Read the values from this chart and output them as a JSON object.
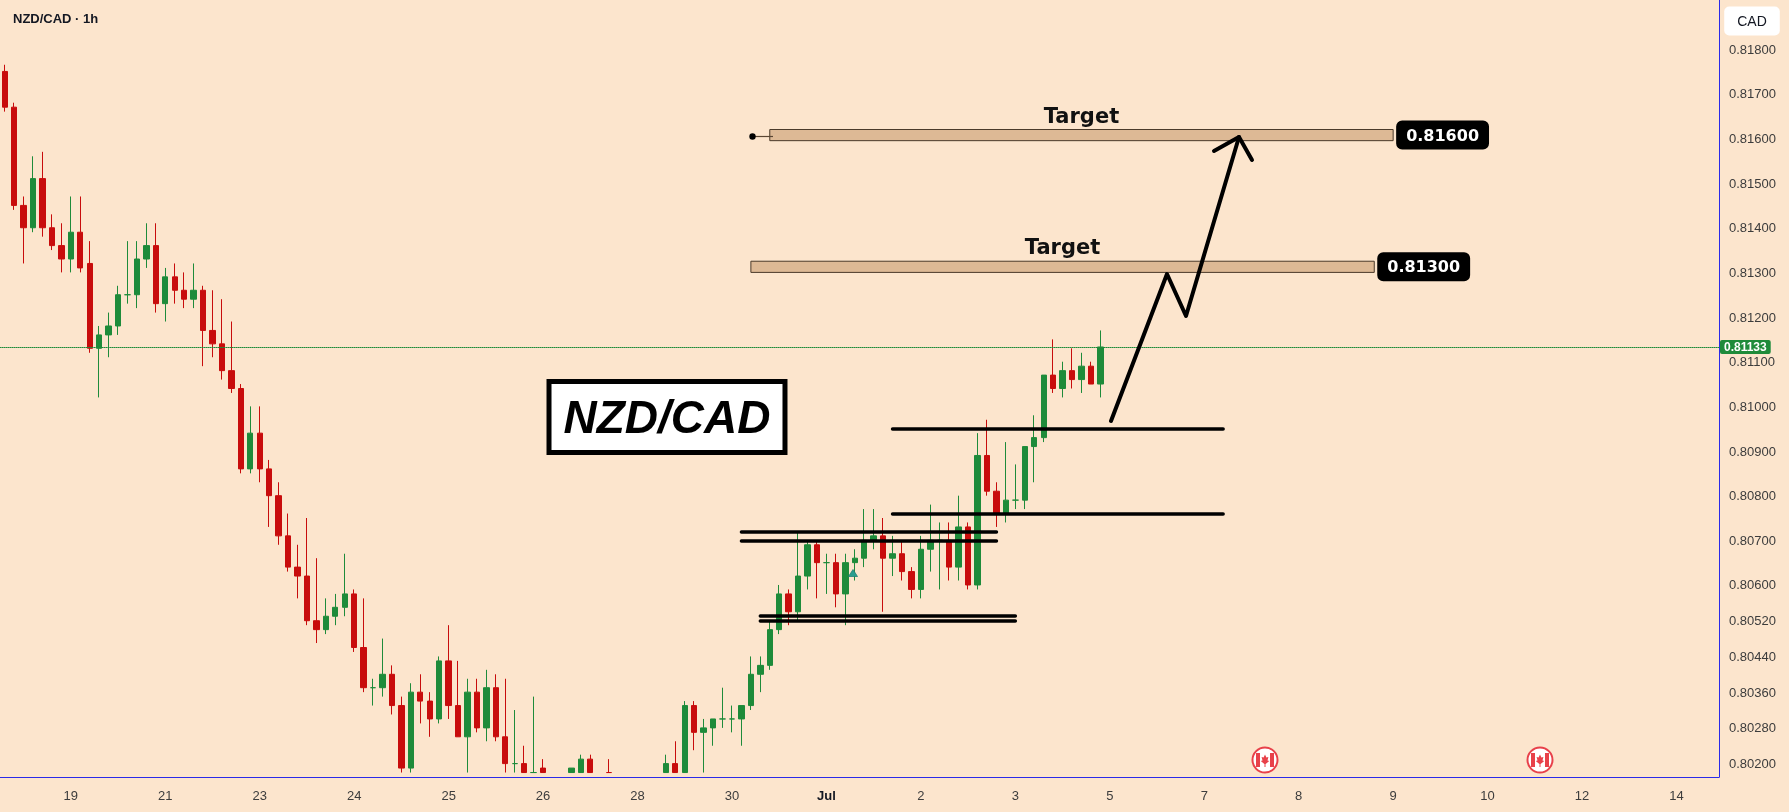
{
  "chart_data": {
    "type": "candlestick",
    "title": "NZD/CAD · 1h",
    "ylabel": "CAD",
    "categories": [
      null,
      null,
      null,
      null,
      null,
      null,
      null,
      "19",
      null,
      null,
      null,
      null,
      null,
      null,
      null,
      null,
      null,
      "21",
      null,
      null,
      null,
      null,
      null,
      null,
      null,
      null,
      null,
      "23",
      null,
      null,
      null,
      null,
      null,
      null,
      null,
      null,
      null,
      "24",
      null,
      null,
      null,
      null,
      null,
      null,
      null,
      null,
      null,
      "25",
      null,
      null,
      null,
      null,
      null,
      null,
      null,
      null,
      null,
      "26",
      null,
      null,
      null,
      null,
      null,
      null,
      null,
      null,
      null,
      "28",
      null,
      null,
      null,
      null,
      null,
      null,
      null,
      null,
      null,
      "30",
      null,
      null,
      null,
      null,
      null,
      null,
      null,
      null,
      null,
      "Jul",
      null,
      null,
      null,
      null,
      null,
      null,
      null,
      null,
      null,
      "2",
      null,
      null,
      null,
      null,
      null,
      null,
      null,
      null,
      null,
      "3",
      null,
      null,
      null,
      null,
      null,
      null,
      null,
      null,
      null,
      "5",
      null,
      null,
      null,
      null,
      null,
      null,
      null,
      null,
      null,
      "7",
      null,
      null,
      null,
      null,
      null,
      null,
      null,
      null,
      null,
      "8",
      null,
      null,
      null,
      null,
      null,
      null,
      null,
      null,
      null,
      "9",
      null,
      null,
      null,
      null,
      null,
      null,
      null,
      null,
      null,
      "10",
      null,
      null,
      null,
      null,
      null,
      null,
      null,
      null,
      null,
      "12",
      null,
      null,
      null,
      null,
      null,
      null,
      null,
      null,
      null,
      "14",
      null,
      null,
      null,
      null
    ],
    "ohlc": [
      [
        0.8175,
        0.81765,
        0.8166,
        0.8167
      ],
      [
        0.8167,
        0.8168,
        0.8144,
        0.8145
      ],
      [
        0.8145,
        0.8147,
        0.8132,
        0.814
      ],
      [
        0.814,
        0.8156,
        0.8139,
        0.8151
      ],
      [
        0.8151,
        0.8157,
        0.8138,
        0.814
      ],
      [
        0.814,
        0.8143,
        0.8135,
        0.8136
      ],
      [
        0.8136,
        0.8141,
        0.813,
        0.8133
      ],
      [
        0.8133,
        0.8147,
        0.813,
        0.8139
      ],
      [
        0.8139,
        0.8147,
        0.813,
        0.8131
      ],
      [
        0.8132,
        0.8137,
        0.8112,
        0.8113
      ],
      [
        0.8113,
        0.8118,
        0.8102,
        0.8116
      ],
      [
        0.8116,
        0.8121,
        0.8111,
        0.8118
      ],
      [
        0.8118,
        0.8127,
        0.8116,
        0.8125
      ],
      [
        0.8125,
        0.8137,
        0.8123,
        0.8125
      ],
      [
        0.8125,
        0.8137,
        0.8122,
        0.8133
      ],
      [
        0.8133,
        0.8141,
        0.8131,
        0.8136
      ],
      [
        0.8136,
        0.8141,
        0.8121,
        0.8123
      ],
      [
        0.8123,
        0.8131,
        0.8119,
        0.8129
      ],
      [
        0.8129,
        0.8132,
        0.8123,
        0.8126
      ],
      [
        0.8126,
        0.813,
        0.8122,
        0.8124
      ],
      [
        0.8124,
        0.8132,
        0.8122,
        0.8126
      ],
      [
        0.8126,
        0.8127,
        0.8109,
        0.8117
      ],
      [
        0.8117,
        0.8126,
        0.8111,
        0.8114
      ],
      [
        0.8114,
        0.8124,
        0.8106,
        0.8108
      ],
      [
        0.8108,
        0.8119,
        0.8103,
        0.8104
      ],
      [
        0.8104,
        0.8105,
        0.8085,
        0.8086
      ],
      [
        0.8086,
        0.81,
        0.8085,
        0.8094
      ],
      [
        0.8094,
        0.81,
        0.8083,
        0.8086
      ],
      [
        0.8086,
        0.8088,
        0.8073,
        0.808
      ],
      [
        0.808,
        0.8083,
        0.8069,
        0.8071
      ],
      [
        0.8071,
        0.8076,
        0.8063,
        0.8064
      ],
      [
        0.8064,
        0.8069,
        0.8057,
        0.8062
      ],
      [
        0.8062,
        0.8075,
        0.8051,
        0.8052
      ],
      [
        0.8052,
        0.8066,
        0.8047,
        0.805
      ],
      [
        0.805,
        0.8057,
        0.8049,
        0.8053
      ],
      [
        0.8053,
        0.8058,
        0.8051,
        0.8055
      ],
      [
        0.8055,
        0.8067,
        0.8053,
        0.8058
      ],
      [
        0.8058,
        0.8059,
        0.8045,
        0.8046
      ],
      [
        0.8046,
        0.8057,
        0.8036,
        0.8037
      ],
      [
        0.8037,
        0.8039,
        0.8033,
        0.8037
      ],
      [
        0.8037,
        0.8048,
        0.8035,
        0.804
      ],
      [
        0.804,
        0.8042,
        0.8031,
        0.8033
      ],
      [
        0.8033,
        0.8035,
        0.8018,
        0.8019
      ],
      [
        0.8019,
        0.8038,
        0.8018,
        0.8036
      ],
      [
        0.8036,
        0.804,
        0.8029,
        0.8034
      ],
      [
        0.8034,
        0.8036,
        0.8026,
        0.803
      ],
      [
        0.803,
        0.8044,
        0.8029,
        0.8043
      ],
      [
        0.8043,
        0.8051,
        0.803,
        0.8033
      ],
      [
        0.8033,
        0.8043,
        0.8026,
        0.8026
      ],
      [
        0.8026,
        0.8039,
        0.8018,
        0.8036
      ],
      [
        0.8036,
        0.8039,
        0.8027,
        0.8028
      ],
      [
        0.8028,
        0.8041,
        0.8025,
        0.8037
      ],
      [
        0.8037,
        0.804,
        0.8025,
        0.8026
      ],
      [
        0.8026,
        0.8039,
        0.8018,
        0.802
      ],
      [
        0.802,
        0.8032,
        0.8018,
        0.802
      ],
      [
        0.802,
        0.8024,
        0.8018,
        0.8018
      ],
      [
        0.8018,
        0.8035,
        0.8018,
        0.8018
      ],
      [
        0.8019,
        0.8021,
        0.8018,
        0.8018
      ],
      null,
      null,
      [
        0.8018,
        0.8019,
        0.8018,
        0.8019
      ],
      [
        0.8018,
        0.8022,
        0.8018,
        0.8021
      ],
      [
        0.8021,
        0.8022,
        0.8018,
        0.8018
      ],
      null,
      [
        0.8018,
        0.8021,
        0.8018,
        0.8018
      ],
      null,
      null,
      null,
      null,
      null,
      [
        0.8018,
        0.8022,
        0.8018,
        0.802
      ],
      [
        0.802,
        0.8025,
        0.8018,
        0.8018
      ],
      [
        0.8018,
        0.8034,
        0.8018,
        0.8033
      ],
      [
        0.8033,
        0.8034,
        0.8023,
        0.8027
      ],
      [
        0.8027,
        0.803,
        0.8018,
        0.8028
      ],
      [
        0.8028,
        0.803,
        0.8024,
        0.803
      ],
      [
        0.803,
        0.8037,
        0.8028,
        0.803
      ],
      [
        0.803,
        0.8033,
        0.8027,
        0.803
      ],
      [
        0.803,
        0.8033,
        0.8024,
        0.8033
      ],
      [
        0.8033,
        0.8044,
        0.8032,
        0.804
      ],
      [
        0.804,
        0.8044,
        0.8036,
        0.8042
      ],
      [
        0.8042,
        0.8052,
        0.8041,
        0.805
      ],
      [
        0.805,
        0.806,
        0.8049,
        0.8058
      ],
      [
        0.8058,
        0.8059,
        0.8051,
        0.8054
      ],
      [
        0.8054,
        0.8072,
        0.8052,
        0.8062
      ],
      [
        0.8062,
        0.807,
        0.8059,
        0.8069
      ],
      [
        0.8069,
        0.807,
        0.8057,
        0.8065
      ],
      [
        0.8065,
        0.8067,
        0.8058,
        0.8065
      ],
      [
        0.8065,
        0.8067,
        0.8055,
        0.8058
      ],
      [
        0.8058,
        0.8067,
        0.8051,
        0.8065
      ],
      [
        0.8065,
        0.8068,
        0.8061,
        0.8066
      ],
      [
        0.8066,
        0.8077,
        0.8064,
        0.807
      ],
      [
        0.807,
        0.8077,
        0.8068,
        0.8071
      ],
      [
        0.8071,
        0.8075,
        0.8054,
        0.8066
      ],
      [
        0.8066,
        0.8071,
        0.8062,
        0.8067
      ],
      [
        0.8067,
        0.807,
        0.8061,
        0.8063
      ],
      [
        0.8063,
        0.8064,
        0.8057,
        0.8059
      ],
      [
        0.8059,
        0.8071,
        0.8057,
        0.8068
      ],
      [
        0.8068,
        0.8078,
        0.8063,
        0.807
      ],
      [
        0.807,
        0.8074,
        0.8059,
        0.807
      ],
      [
        0.807,
        0.8074,
        0.8061,
        0.8064
      ],
      [
        0.8064,
        0.808,
        0.8061,
        0.8073
      ],
      [
        0.8073,
        0.8074,
        0.8059,
        0.806
      ],
      [
        0.806,
        0.8094,
        0.8059,
        0.8089
      ],
      [
        0.8089,
        0.8097,
        0.808,
        0.8081
      ],
      [
        0.8081,
        0.8083,
        0.8073,
        0.8076
      ],
      [
        0.8076,
        0.8092,
        0.8074,
        0.8079
      ],
      [
        0.8079,
        0.8087,
        0.8077,
        0.8079
      ],
      [
        0.8079,
        0.8091,
        0.8077,
        0.8091
      ],
      [
        0.8091,
        0.8098,
        0.8083,
        0.8093
      ],
      [
        0.8093,
        0.8107,
        0.8092,
        0.8107
      ],
      [
        0.8107,
        0.8115,
        0.8103,
        0.8104
      ],
      [
        0.8104,
        0.811,
        0.8102,
        0.8108
      ],
      [
        0.8108,
        0.8113,
        0.8104,
        0.8106
      ],
      [
        0.8106,
        0.8112,
        0.8103,
        0.8109
      ],
      [
        0.8109,
        0.811,
        0.8105,
        0.8105
      ],
      [
        0.8105,
        0.8117,
        0.8102,
        0.81133
      ],
      null,
      null,
      null,
      null,
      null,
      null,
      null,
      null,
      null,
      null,
      null,
      null,
      null,
      null,
      null,
      null,
      null,
      null,
      null,
      null,
      null,
      null,
      null,
      null,
      null,
      null,
      null,
      null,
      null,
      null,
      null,
      null,
      null,
      null,
      null,
      null,
      null,
      null,
      null,
      null,
      null,
      null,
      null,
      null,
      null,
      null,
      null,
      null,
      null,
      null,
      null,
      null,
      null,
      null,
      null,
      null,
      null,
      null,
      null,
      null,
      null,
      null,
      null,
      null,
      null
    ],
    "ylim": [
      0.8017,
      0.8191
    ],
    "yticks": [
      {
        "value": 0.818,
        "label": "0.81800"
      },
      {
        "value": 0.817,
        "label": "0.81700"
      },
      {
        "value": 0.816,
        "label": "0.81600"
      },
      {
        "value": 0.815,
        "label": "0.81500"
      },
      {
        "value": 0.814,
        "label": "0.81400"
      },
      {
        "value": 0.813,
        "label": "0.81300"
      },
      {
        "value": 0.812,
        "label": "0.81200"
      },
      {
        "value": 0.811,
        "label": "0.81100"
      },
      {
        "value": 0.81,
        "label": "0.81000"
      },
      {
        "value": 0.809,
        "label": "0.80900"
      },
      {
        "value": 0.808,
        "label": "0.80800"
      },
      {
        "value": 0.807,
        "label": "0.80700"
      },
      {
        "value": 0.806,
        "label": "0.80600"
      },
      {
        "value": 0.8052,
        "label": "0.80520"
      },
      {
        "value": 0.8044,
        "label": "0.80440"
      },
      {
        "value": 0.8036,
        "label": "0.80360"
      },
      {
        "value": 0.8028,
        "label": "0.80280"
      },
      {
        "value": 0.802,
        "label": "0.80200"
      }
    ],
    "ref_lines": [
      {
        "axis": "y",
        "value": 0.81133,
        "label": "0.81133",
        "line_style": "dotted",
        "color": "#1e8b3a"
      },
      {
        "axis": "y",
        "value": 0.8095,
        "color": "#000000"
      },
      {
        "axis": "y",
        "value": 0.8076,
        "color": "#000000"
      },
      {
        "axis": "y",
        "value": 0.8072,
        "color": "#000000"
      },
      {
        "axis": "y",
        "value": 0.807,
        "color": "#000000"
      },
      {
        "axis": "y",
        "value": 0.8053,
        "color": "#000000"
      },
      {
        "axis": "y",
        "value": 0.8052,
        "color": "#000000"
      }
    ],
    "bands": [
      {
        "axis": "y",
        "from": 0.81595,
        "to": 0.8162,
        "label": "Target",
        "color": "#ddb995"
      },
      {
        "axis": "y",
        "from": 0.813,
        "to": 0.81325,
        "label": "Target",
        "color": "#ddb995"
      }
    ],
    "annotations": [
      "NZD/CAD",
      "0.81600",
      "0.81300"
    ]
  }
}
